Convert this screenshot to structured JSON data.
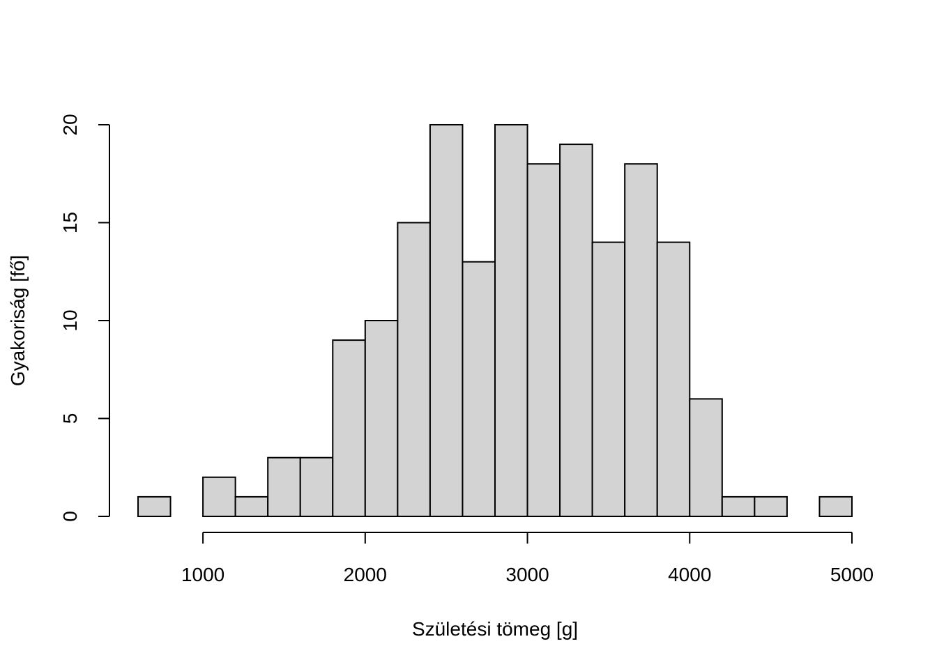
{
  "chart_data": {
    "type": "bar",
    "histogram": true,
    "title": "",
    "xlabel": "Születési tömeg [g]",
    "ylabel": "Gyakoriság [fő]",
    "bin_width": 200,
    "bins": [
      {
        "start": 600,
        "end": 800,
        "count": 1
      },
      {
        "start": 800,
        "end": 1000,
        "count": 0
      },
      {
        "start": 1000,
        "end": 1200,
        "count": 2
      },
      {
        "start": 1200,
        "end": 1400,
        "count": 1
      },
      {
        "start": 1400,
        "end": 1600,
        "count": 3
      },
      {
        "start": 1600,
        "end": 1800,
        "count": 3
      },
      {
        "start": 1800,
        "end": 2000,
        "count": 9
      },
      {
        "start": 2000,
        "end": 2200,
        "count": 10
      },
      {
        "start": 2200,
        "end": 2400,
        "count": 15
      },
      {
        "start": 2400,
        "end": 2600,
        "count": 20
      },
      {
        "start": 2600,
        "end": 2800,
        "count": 13
      },
      {
        "start": 2800,
        "end": 3000,
        "count": 20
      },
      {
        "start": 3000,
        "end": 3200,
        "count": 18
      },
      {
        "start": 3200,
        "end": 3400,
        "count": 19
      },
      {
        "start": 3400,
        "end": 3600,
        "count": 14
      },
      {
        "start": 3600,
        "end": 3800,
        "count": 18
      },
      {
        "start": 3800,
        "end": 4000,
        "count": 14
      },
      {
        "start": 4000,
        "end": 4200,
        "count": 6
      },
      {
        "start": 4200,
        "end": 4400,
        "count": 1
      },
      {
        "start": 4400,
        "end": 4600,
        "count": 1
      },
      {
        "start": 4600,
        "end": 4800,
        "count": 0
      },
      {
        "start": 4800,
        "end": 5000,
        "count": 1
      }
    ],
    "xlim": [
      600,
      5000
    ],
    "ylim": [
      0,
      20
    ],
    "x_ticks": [
      1000,
      2000,
      3000,
      4000,
      5000
    ],
    "x_tick_labels": [
      "1000",
      "2000",
      "3000",
      "4000",
      "5000"
    ],
    "y_ticks": [
      0,
      5,
      10,
      15,
      20
    ],
    "y_tick_labels": [
      "0",
      "5",
      "10",
      "15",
      "20"
    ],
    "bar_color": "#d3d3d3",
    "grid": false
  }
}
